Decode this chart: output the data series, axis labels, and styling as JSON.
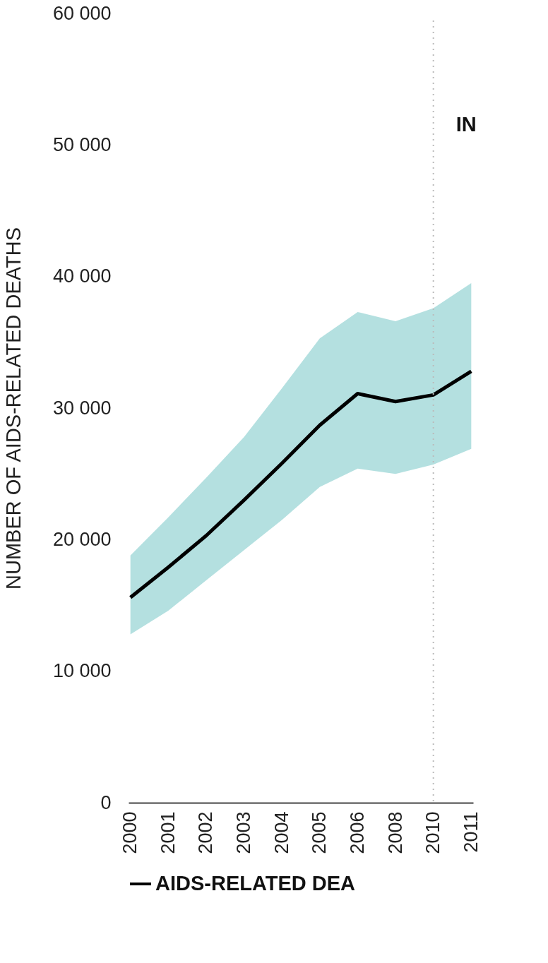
{
  "chart_data": {
    "type": "line",
    "ylabel": "NUMBER OF AIDS-RELATED DEATHS",
    "categories": [
      "2000",
      "2001",
      "2002",
      "2003",
      "2004",
      "2005",
      "2006",
      "2008",
      "2010",
      "2011"
    ],
    "series": [
      {
        "name": "AIDS-RELATED DEA",
        "color": "#000000",
        "values": [
          15600,
          17900,
          20300,
          23000,
          25800,
          28700,
          31100,
          30500,
          31000,
          32800
        ],
        "upper": [
          18800,
          21700,
          24700,
          27800,
          31500,
          35300,
          37300,
          36600,
          37600,
          39500
        ],
        "lower": [
          12800,
          14600,
          16900,
          19200,
          21500,
          24000,
          25400,
          25000,
          25700,
          26900
        ]
      }
    ],
    "ylim": [
      0,
      60000
    ],
    "yticks": [
      {
        "value": 0,
        "label": "0"
      },
      {
        "value": 10000,
        "label": "10 000"
      },
      {
        "value": 20000,
        "label": "20 000"
      },
      {
        "value": 30000,
        "label": "30 000"
      },
      {
        "value": 40000,
        "label": "40 000"
      },
      {
        "value": 50000,
        "label": "50 000"
      },
      {
        "value": 60000,
        "label": "60 000"
      }
    ],
    "ref_lines": [
      {
        "axis": "x",
        "value": "2010",
        "label": "IN",
        "color": "#bbbbbb",
        "line_style": "dotted"
      }
    ],
    "grid": false,
    "legend": "bottom",
    "line_style": "solid",
    "marker": "none"
  }
}
